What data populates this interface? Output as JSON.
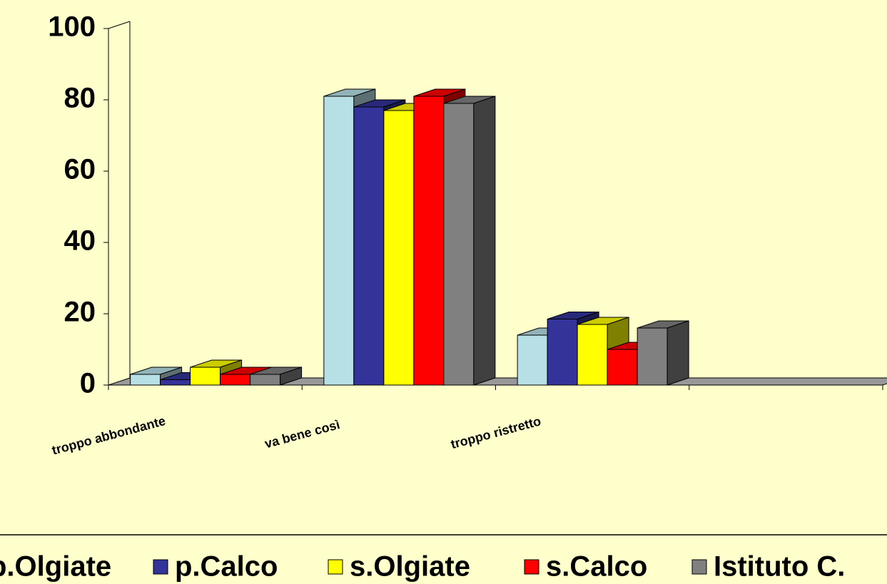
{
  "chart_data": {
    "type": "bar3d",
    "categories": [
      "troppo abbondante",
      "va bene così",
      "troppo ristretto",
      null
    ],
    "series": [
      {
        "name": "p.Olgiate",
        "color": "#b7e0e6",
        "values": [
          3,
          81,
          14,
          null
        ]
      },
      {
        "name": "p.Calco",
        "color": "#333399",
        "values": [
          1.5,
          78,
          18.5,
          null
        ]
      },
      {
        "name": "s.Olgiate",
        "color": "#ffff00",
        "values": [
          5,
          77,
          17,
          null
        ]
      },
      {
        "name": "s.Calco",
        "color": "#ff0000",
        "values": [
          3,
          81,
          10,
          null
        ]
      },
      {
        "name": "Istituto C.",
        "color": "#808080",
        "values": [
          3,
          79,
          16,
          null
        ]
      }
    ],
    "ylim": [
      0,
      100
    ],
    "yticks": [
      0,
      20,
      40,
      60,
      80,
      100
    ]
  }
}
